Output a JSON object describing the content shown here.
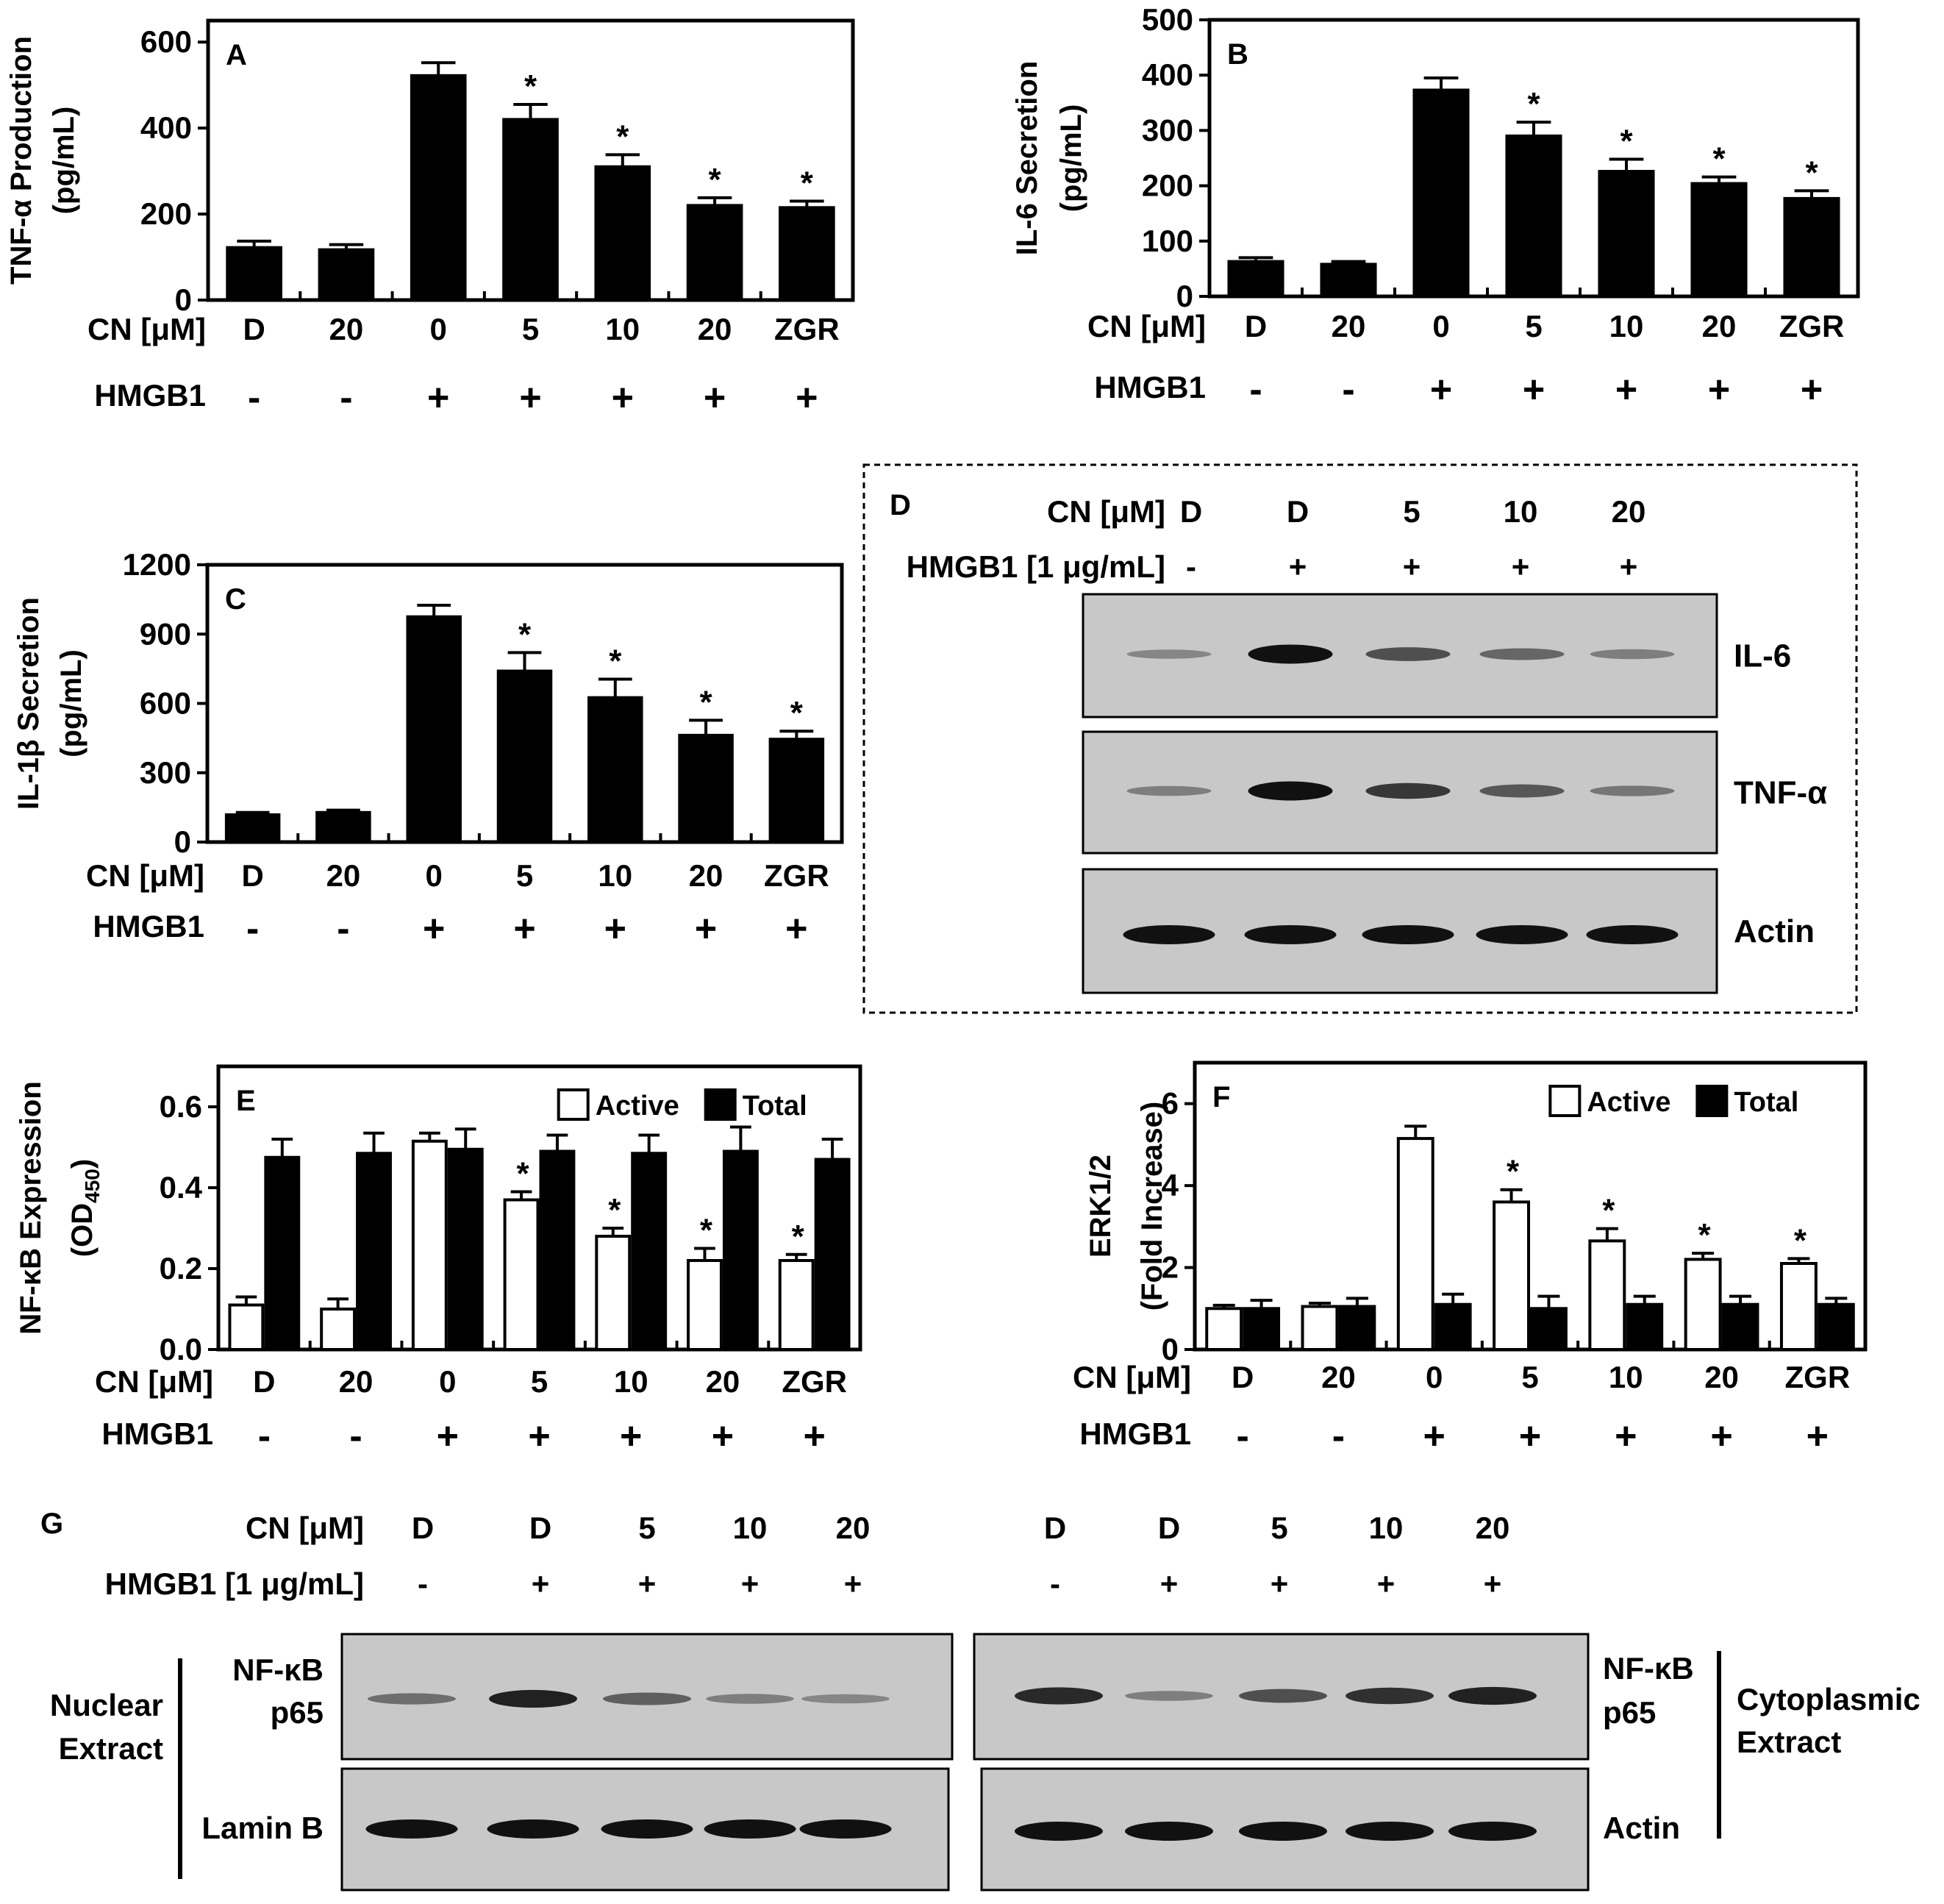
{
  "treatment_row": {
    "cn_label": "CN [μM]",
    "hmgb1_label": "HMGB1",
    "cn_values": [
      "D",
      "20",
      "0",
      "5",
      "10",
      "20",
      "ZGR"
    ],
    "hmgb1_values": [
      "-",
      "-",
      "+",
      "+",
      "+",
      "+",
      "+"
    ]
  },
  "significance_marker": "*",
  "legend": {
    "active": "Active",
    "total": "Total"
  },
  "colors": {
    "bar": "#000000",
    "active_fill": "#ffffff",
    "total_fill": "#000000",
    "blot_bg": "#c8c8c8",
    "band": "#111111"
  },
  "chart_data": [
    {
      "panel": "A",
      "type": "bar",
      "ylabel_line1": "TNF-α Production",
      "ylabel_line2": "(pg/mL)",
      "ylim": [
        0,
        650
      ],
      "yticks": [
        "0",
        "200",
        "400",
        "600"
      ],
      "ytick_values": [
        0,
        200,
        400,
        600
      ],
      "categories": [
        "D",
        "20",
        "0",
        "5",
        "10",
        "20",
        "ZGR"
      ],
      "series": [
        {
          "name": "TNF-α",
          "values": [
            122,
            117,
            522,
            420,
            310,
            220,
            215
          ],
          "errors": [
            15,
            12,
            30,
            35,
            28,
            18,
            15
          ]
        }
      ],
      "significant": [
        false,
        false,
        false,
        true,
        true,
        true,
        true
      ]
    },
    {
      "panel": "B",
      "type": "bar",
      "ylabel_line1": "IL-6 Secretion",
      "ylabel_line2": "(pg/mL)",
      "ylim": [
        0,
        500
      ],
      "yticks": [
        "0",
        "100",
        "200",
        "300",
        "400",
        "500"
      ],
      "ytick_values": [
        0,
        100,
        200,
        300,
        400,
        500
      ],
      "categories": [
        "D",
        "20",
        "0",
        "5",
        "10",
        "20",
        "ZGR"
      ],
      "series": [
        {
          "name": "IL-6",
          "values": [
            63,
            58,
            373,
            290,
            226,
            204,
            177
          ],
          "errors": [
            7,
            5,
            22,
            25,
            22,
            12,
            14
          ]
        }
      ],
      "significant": [
        false,
        false,
        false,
        true,
        true,
        true,
        true
      ]
    },
    {
      "panel": "C",
      "type": "bar",
      "ylabel_line1": "IL-1β Secretion",
      "ylabel_line2": "(pg/mL)",
      "ylim": [
        0,
        1200
      ],
      "yticks": [
        "0",
        "300",
        "600",
        "900",
        "1200"
      ],
      "ytick_values": [
        0,
        300,
        600,
        900,
        1200
      ],
      "categories": [
        "D",
        "20",
        "0",
        "5",
        "10",
        "20",
        "ZGR"
      ],
      "series": [
        {
          "name": "IL-1β",
          "values": [
            118,
            128,
            975,
            740,
            625,
            462,
            445
          ],
          "errors": [
            10,
            10,
            50,
            80,
            80,
            65,
            35
          ]
        }
      ],
      "significant": [
        false,
        false,
        false,
        true,
        true,
        true,
        true
      ]
    },
    {
      "panel": "E",
      "type": "bar",
      "ylabel_line1": "NF-κB Expression",
      "ylabel_line2": "(OD450)",
      "ylim": [
        0,
        0.7
      ],
      "yticks": [
        "0.0",
        "0.2",
        "0.4",
        "0.6"
      ],
      "ytick_values": [
        0,
        0.2,
        0.4,
        0.6
      ],
      "categories": [
        "D",
        "20",
        "0",
        "5",
        "10",
        "20",
        "ZGR"
      ],
      "series": [
        {
          "name": "Active",
          "values": [
            0.11,
            0.1,
            0.515,
            0.37,
            0.28,
            0.22,
            0.22
          ],
          "errors": [
            0.02,
            0.025,
            0.02,
            0.02,
            0.02,
            0.03,
            0.015
          ]
        },
        {
          "name": "Total",
          "values": [
            0.475,
            0.485,
            0.495,
            0.49,
            0.485,
            0.49,
            0.47
          ],
          "errors": [
            0.045,
            0.05,
            0.05,
            0.04,
            0.045,
            0.06,
            0.05
          ]
        }
      ],
      "significant": [
        false,
        false,
        false,
        true,
        true,
        true,
        true
      ]
    },
    {
      "panel": "F",
      "type": "bar",
      "ylabel_line1": "ERK1/2",
      "ylabel_line2": "(Fold Increase)",
      "ylim": [
        0,
        7
      ],
      "yticks": [
        "0",
        "2",
        "4",
        "6"
      ],
      "ytick_values": [
        0,
        2,
        4,
        6
      ],
      "categories": [
        "D",
        "20",
        "0",
        "5",
        "10",
        "20",
        "ZGR"
      ],
      "series": [
        {
          "name": "Active",
          "values": [
            1.0,
            1.05,
            5.15,
            3.6,
            2.65,
            2.2,
            2.1
          ],
          "errors": [
            0.08,
            0.08,
            0.3,
            0.3,
            0.3,
            0.15,
            0.12
          ]
        },
        {
          "name": "Total",
          "values": [
            1.0,
            1.05,
            1.1,
            1.0,
            1.1,
            1.1,
            1.1
          ],
          "errors": [
            0.2,
            0.2,
            0.25,
            0.3,
            0.2,
            0.2,
            0.15
          ]
        }
      ],
      "significant": [
        false,
        false,
        false,
        true,
        true,
        true,
        true
      ]
    }
  ],
  "blot_d": {
    "panel": "D",
    "cn_label": "CN [μM]",
    "hmgb1_label": "HMGB1 [1 μg/mL]",
    "cn_values": [
      "D",
      "D",
      "5",
      "10",
      "20"
    ],
    "hmgb1_values": [
      "-",
      "+",
      "+",
      "+",
      "+"
    ],
    "rows": [
      {
        "label": "IL-6",
        "intensity": [
          0.25,
          1.0,
          0.6,
          0.45,
          0.3
        ]
      },
      {
        "label": "TNF-α",
        "intensity": [
          0.3,
          1.0,
          0.75,
          0.55,
          0.35
        ]
      },
      {
        "label": "Actin",
        "intensity": [
          1.0,
          1.0,
          1.0,
          1.0,
          1.0
        ]
      }
    ]
  },
  "blot_g": {
    "panel": "G",
    "cn_label": "CN [μM]",
    "hmgb1_label": "HMGB1 [1 μg/mL]",
    "cn_values": [
      "D",
      "D",
      "5",
      "10",
      "20"
    ],
    "hmgb1_values": [
      "-",
      "+",
      "+",
      "+",
      "+"
    ],
    "nuclear": {
      "extract_line1": "Nuclear",
      "extract_line2": "Extract",
      "row1_label_line1": "NF-κB",
      "row1_label_line2": "p65",
      "row2_label": "Lamin B",
      "row1_intensity": [
        0.4,
        0.9,
        0.5,
        0.3,
        0.25
      ],
      "row2_intensity": [
        1.0,
        1.0,
        1.0,
        1.0,
        1.0
      ]
    },
    "cytoplasmic": {
      "extract_line1": "Cytoplasmic",
      "extract_line2": "Extract",
      "row1_label_line1": "NF-κB",
      "row1_label_line2": "p65",
      "row2_label": "Actin",
      "row1_intensity": [
        0.85,
        0.3,
        0.6,
        0.8,
        0.9
      ],
      "row2_intensity": [
        1.0,
        1.0,
        1.0,
        1.0,
        1.0
      ]
    }
  }
}
